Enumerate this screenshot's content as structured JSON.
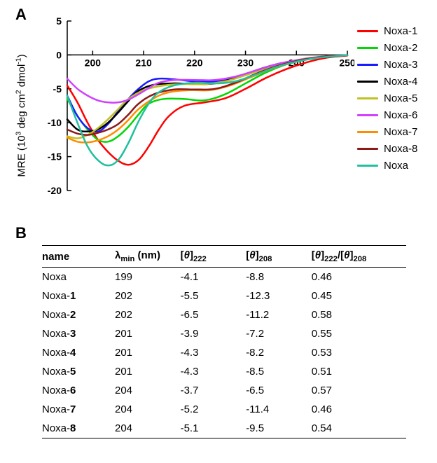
{
  "panel_labels": {
    "A": "A",
    "B": "B"
  },
  "chart": {
    "type": "line",
    "y_title_html": "MRE (10<sup>3</sup> deg cm<sup>2</sup> dmol<sup>-1</sup>)",
    "xlim": [
      195,
      250
    ],
    "ylim": [
      -20,
      5
    ],
    "xticks": [
      200,
      210,
      220,
      230,
      240,
      250
    ],
    "yticks": [
      -20,
      -15,
      -10,
      -5,
      0,
      5
    ],
    "axis_fontsize": 14,
    "line_width": 2.5,
    "background_color": "#ffffff",
    "axis_color": "#000000",
    "tick_len": 6,
    "series": [
      {
        "name": "Noxa-1",
        "color": "#ff0000",
        "points": [
          [
            195,
            -4.5
          ],
          [
            197,
            -7
          ],
          [
            199,
            -10
          ],
          [
            201,
            -12.5
          ],
          [
            203,
            -14.3
          ],
          [
            205,
            -15.6
          ],
          [
            207,
            -16.2
          ],
          [
            209,
            -15.5
          ],
          [
            211,
            -13.5
          ],
          [
            213,
            -11.0
          ],
          [
            215,
            -9.0
          ],
          [
            218,
            -7.5
          ],
          [
            222,
            -7.0
          ],
          [
            226,
            -6.4
          ],
          [
            230,
            -5.0
          ],
          [
            234,
            -3.4
          ],
          [
            238,
            -2.1
          ],
          [
            242,
            -1.1
          ],
          [
            246,
            -0.4
          ],
          [
            250,
            -0.1
          ]
        ]
      },
      {
        "name": "Noxa-2",
        "color": "#00d800",
        "points": [
          [
            195,
            -6.5
          ],
          [
            197,
            -9.0
          ],
          [
            199,
            -11.0
          ],
          [
            201,
            -12.5
          ],
          [
            203,
            -12.8
          ],
          [
            205,
            -12.0
          ],
          [
            207,
            -10.6
          ],
          [
            209,
            -8.8
          ],
          [
            211,
            -7.2
          ],
          [
            214,
            -6.5
          ],
          [
            218,
            -6.5
          ],
          [
            222,
            -6.7
          ],
          [
            226,
            -5.8
          ],
          [
            230,
            -4.2
          ],
          [
            234,
            -2.6
          ],
          [
            238,
            -1.4
          ],
          [
            242,
            -0.6
          ],
          [
            246,
            -0.2
          ],
          [
            250,
            -0.05
          ]
        ]
      },
      {
        "name": "Noxa-3",
        "color": "#1a1aff",
        "points": [
          [
            195,
            -6.0
          ],
          [
            197,
            -9.0
          ],
          [
            199,
            -10.8
          ],
          [
            201,
            -11.3
          ],
          [
            203,
            -10.2
          ],
          [
            205,
            -8.3
          ],
          [
            207,
            -6.5
          ],
          [
            209,
            -5.0
          ],
          [
            211,
            -3.9
          ],
          [
            213,
            -3.5
          ],
          [
            216,
            -3.6
          ],
          [
            220,
            -3.9
          ],
          [
            224,
            -3.9
          ],
          [
            228,
            -3.3
          ],
          [
            232,
            -2.3
          ],
          [
            236,
            -1.4
          ],
          [
            240,
            -0.8
          ],
          [
            244,
            -0.35
          ],
          [
            248,
            -0.1
          ],
          [
            250,
            -0.05
          ]
        ]
      },
      {
        "name": "Noxa-4",
        "color": "#000000",
        "points": [
          [
            195,
            -9.5
          ],
          [
            197,
            -11.0
          ],
          [
            199,
            -11.3
          ],
          [
            201,
            -11.0
          ],
          [
            203,
            -10.0
          ],
          [
            205,
            -8.5
          ],
          [
            207,
            -6.8
          ],
          [
            209,
            -5.3
          ],
          [
            212,
            -4.4
          ],
          [
            216,
            -4.2
          ],
          [
            220,
            -4.3
          ],
          [
            224,
            -4.2
          ],
          [
            228,
            -3.4
          ],
          [
            232,
            -2.3
          ],
          [
            236,
            -1.4
          ],
          [
            240,
            -0.8
          ],
          [
            244,
            -0.35
          ],
          [
            248,
            -0.1
          ],
          [
            250,
            -0.05
          ]
        ]
      },
      {
        "name": "Noxa-5",
        "color": "#c0c020",
        "points": [
          [
            195,
            -12.0
          ],
          [
            197,
            -12.3
          ],
          [
            199,
            -11.8
          ],
          [
            201,
            -10.8
          ],
          [
            203,
            -9.5
          ],
          [
            205,
            -8.0
          ],
          [
            207,
            -6.5
          ],
          [
            210,
            -5.2
          ],
          [
            214,
            -4.5
          ],
          [
            218,
            -4.3
          ],
          [
            222,
            -4.3
          ],
          [
            226,
            -3.9
          ],
          [
            230,
            -3.0
          ],
          [
            234,
            -2.0
          ],
          [
            238,
            -1.1
          ],
          [
            242,
            -0.5
          ],
          [
            246,
            -0.2
          ],
          [
            250,
            -0.05
          ]
        ]
      },
      {
        "name": "Noxa-6",
        "color": "#d040ff",
        "points": [
          [
            195,
            -3.5
          ],
          [
            197,
            -5.0
          ],
          [
            199,
            -6.0
          ],
          [
            201,
            -6.7
          ],
          [
            203,
            -7.0
          ],
          [
            205,
            -7.0
          ],
          [
            207,
            -6.6
          ],
          [
            209,
            -5.8
          ],
          [
            211,
            -4.9
          ],
          [
            213,
            -4.1
          ],
          [
            216,
            -3.7
          ],
          [
            220,
            -3.7
          ],
          [
            224,
            -3.7
          ],
          [
            228,
            -3.2
          ],
          [
            232,
            -2.3
          ],
          [
            236,
            -1.4
          ],
          [
            240,
            -0.8
          ],
          [
            244,
            -0.35
          ],
          [
            248,
            -0.1
          ],
          [
            250,
            -0.05
          ]
        ]
      },
      {
        "name": "Noxa-7",
        "color": "#ff8c00",
        "points": [
          [
            195,
            -12.2
          ],
          [
            197,
            -12.8
          ],
          [
            199,
            -12.9
          ],
          [
            201,
            -12.6
          ],
          [
            203,
            -12.0
          ],
          [
            205,
            -11.0
          ],
          [
            207,
            -9.6
          ],
          [
            209,
            -8.0
          ],
          [
            212,
            -6.4
          ],
          [
            215,
            -5.5
          ],
          [
            219,
            -5.2
          ],
          [
            223,
            -5.2
          ],
          [
            227,
            -4.5
          ],
          [
            231,
            -3.3
          ],
          [
            235,
            -2.1
          ],
          [
            239,
            -1.2
          ],
          [
            243,
            -0.55
          ],
          [
            247,
            -0.2
          ],
          [
            250,
            -0.05
          ]
        ]
      },
      {
        "name": "Noxa-8",
        "color": "#8b1a1a",
        "points": [
          [
            195,
            -11.0
          ],
          [
            197,
            -11.6
          ],
          [
            199,
            -11.8
          ],
          [
            201,
            -11.5
          ],
          [
            203,
            -11.0
          ],
          [
            205,
            -10.2
          ],
          [
            207,
            -8.8
          ],
          [
            209,
            -7.2
          ],
          [
            212,
            -5.8
          ],
          [
            216,
            -5.1
          ],
          [
            220,
            -5.1
          ],
          [
            224,
            -5.0
          ],
          [
            228,
            -4.1
          ],
          [
            232,
            -2.8
          ],
          [
            236,
            -1.7
          ],
          [
            240,
            -0.9
          ],
          [
            244,
            -0.4
          ],
          [
            248,
            -0.12
          ],
          [
            250,
            -0.05
          ]
        ]
      },
      {
        "name": "Noxa",
        "color": "#20c0a0",
        "points": [
          [
            195,
            -6.0
          ],
          [
            197,
            -10.0
          ],
          [
            199,
            -13.5
          ],
          [
            201,
            -15.5
          ],
          [
            203,
            -16.3
          ],
          [
            205,
            -15.5
          ],
          [
            207,
            -13.0
          ],
          [
            209,
            -9.8
          ],
          [
            211,
            -7.2
          ],
          [
            213,
            -5.5
          ],
          [
            216,
            -4.5
          ],
          [
            220,
            -4.1
          ],
          [
            224,
            -4.2
          ],
          [
            228,
            -3.9
          ],
          [
            232,
            -2.9
          ],
          [
            236,
            -1.8
          ],
          [
            240,
            -1.0
          ],
          [
            244,
            -0.45
          ],
          [
            248,
            -0.15
          ],
          [
            250,
            -0.05
          ]
        ]
      }
    ]
  },
  "table": {
    "type": "table",
    "columns": [
      "name",
      "λ<sub>min</sub> (nm)",
      "[<i>θ</i>]<sub>222</sub>",
      "[<i>θ</i>]<sub>208</sub>",
      "[<i>θ</i>]<sub>222</sub>/[<i>θ</i>]<sub>208</sub>"
    ],
    "name_bold_suffix": [
      null,
      "1",
      "2",
      "3",
      "4",
      "5",
      "6",
      "7",
      "8"
    ],
    "rows": [
      [
        "Noxa",
        "199",
        "-4.1",
        "-8.8",
        "0.46"
      ],
      [
        "Noxa-",
        "202",
        "-5.5",
        "-12.3",
        "0.45"
      ],
      [
        "Noxa-",
        "202",
        "-6.5",
        "-11.2",
        "0.58"
      ],
      [
        "Noxa-",
        "201",
        "-3.9",
        "-7.2",
        "0.55"
      ],
      [
        "Noxa-",
        "201",
        "-4.3",
        "-8.2",
        "0.53"
      ],
      [
        "Noxa-",
        "201",
        "-4.3",
        "-8.5",
        "0.51"
      ],
      [
        "Noxa-",
        "204",
        "-3.7",
        "-6.5",
        "0.57"
      ],
      [
        "Noxa-",
        "204",
        "-5.2",
        "-11.4",
        "0.46"
      ],
      [
        "Noxa-",
        "204",
        "-5.1",
        "-9.5",
        "0.54"
      ]
    ],
    "header_fontsize": 15,
    "cell_fontsize": 15,
    "border_color": "#000000"
  }
}
